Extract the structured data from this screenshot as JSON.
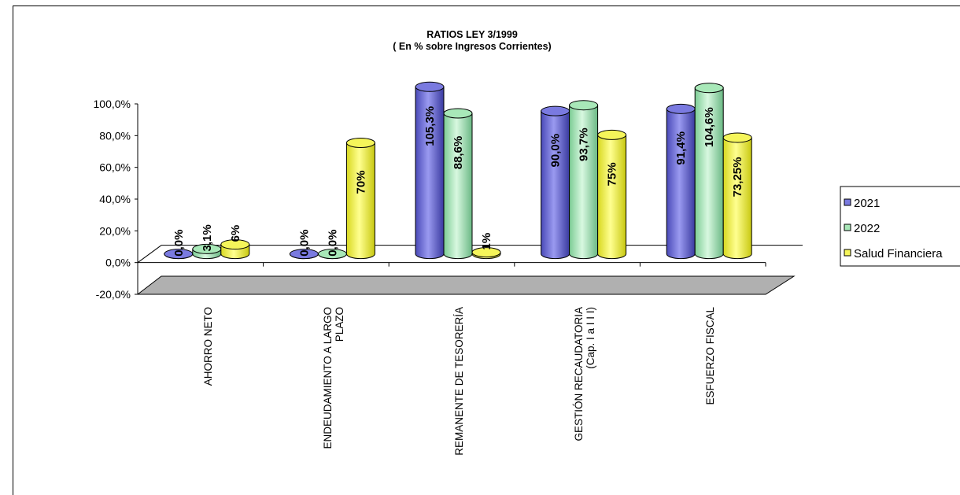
{
  "chart_data": {
    "type": "bar",
    "title": "RATIOS LEY 3/1999",
    "subtitle": "( En % sobre Ingresos Corrientes)",
    "ylim": [
      -20,
      100
    ],
    "yticks": [
      "100,0%",
      "80,0%",
      "60,0%",
      "40,0%",
      "20,0%",
      "0,0%",
      "-20,0%"
    ],
    "categories": [
      [
        "AHORRO NETO"
      ],
      [
        "ENDEUDAMIENTO A LARGO",
        "PLAZO"
      ],
      [
        "REMANENTE DE TESORERÍA"
      ],
      [
        "GESTIÓN RECAUDATORIA",
        "(Cap. I a I I I)"
      ],
      [
        "ESFUERZO FISCAL"
      ]
    ],
    "series": [
      {
        "name": "2021",
        "color": "#7a7ae0",
        "values": [
          0.0,
          0.0,
          105.3,
          90.0,
          91.4
        ],
        "labels": [
          "0,0%",
          "0,0%",
          "105,3%",
          "90,0%",
          "91,4%"
        ]
      },
      {
        "name": "2022",
        "color": "#a8e8b8",
        "values": [
          3.1,
          0.0,
          88.6,
          93.7,
          104.6
        ],
        "labels": [
          "3,1%",
          "0,0%",
          "88,6%",
          "93,7%",
          "104,6%"
        ]
      },
      {
        "name": "Salud Financiera",
        "color": "#f5f55a",
        "values": [
          6,
          70,
          1,
          75,
          73.25
        ],
        "labels": [
          "6%",
          "70%",
          "1%",
          "75%",
          "73,25%"
        ]
      }
    ],
    "legend": "right",
    "grid": false
  }
}
